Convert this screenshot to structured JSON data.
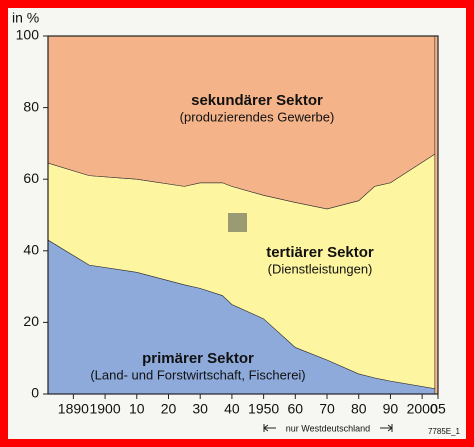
{
  "chart_data": {
    "type": "area",
    "stacked": true,
    "y_label": "in %",
    "x": [
      1882,
      1895,
      1910,
      1925,
      1930,
      1937,
      1940,
      1950,
      1960,
      1970,
      1980,
      1985,
      1990,
      2004
    ],
    "series": [
      {
        "name": "primärer Sektor",
        "description": "(Land- und Forstwirtschaft, Fischerei)",
        "color": "#8eaadb",
        "values": [
          43,
          36,
          34,
          30.5,
          29.5,
          27.5,
          25,
          21,
          13,
          9.5,
          5.6,
          4.5,
          3.6,
          1.5
        ]
      },
      {
        "name": "tertiärer Sektor",
        "description": "(Dienstleistungen)",
        "color": "#fdf5a0",
        "values": [
          21.5,
          25,
          26,
          27.5,
          29.5,
          31.5,
          33,
          34.5,
          40.5,
          42.2,
          48.4,
          53.5,
          55.4,
          65.5
        ]
      },
      {
        "name": "sekundärer Sektor",
        "description": "(produzierendes Gewerbe)",
        "color": "#f5b38a",
        "values": [
          35.5,
          39,
          40,
          42,
          41,
          41,
          42,
          44.5,
          46.5,
          48.3,
          46,
          42,
          41,
          33
        ]
      }
    ],
    "xlim": [
      1882,
      2005
    ],
    "xticks": [
      1890,
      1900,
      {
        "value": 1910,
        "label": "10"
      },
      {
        "value": 1920,
        "label": "20"
      },
      {
        "value": 1930,
        "label": "30"
      },
      {
        "value": 1940,
        "label": "40"
      },
      1950,
      {
        "value": 1960,
        "label": "60"
      },
      {
        "value": 1970,
        "label": "70"
      },
      {
        "value": 1980,
        "label": "80"
      },
      {
        "value": 1990,
        "label": "90"
      },
      2000,
      {
        "value": 2005,
        "label": "05"
      }
    ],
    "ylim": [
      0,
      100
    ],
    "yticks": [
      0,
      20,
      40,
      60,
      80,
      100
    ],
    "annotation": "nur Westdeutschland",
    "footer": "7785E_1"
  }
}
